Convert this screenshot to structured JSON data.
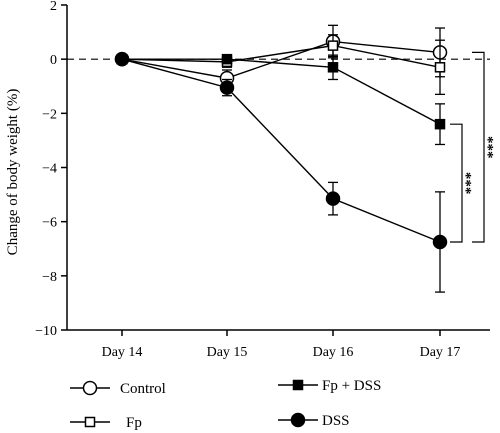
{
  "chart_data": {
    "type": "line",
    "title": "",
    "xlabel": "",
    "ylabel": "Change of body weight (%)",
    "categories": [
      "Day 14",
      "Day 15",
      "Day 16",
      "Day 17"
    ],
    "ylim": [
      -10,
      2
    ],
    "yticks": [
      2,
      0,
      -2,
      -4,
      -6,
      -8,
      -10
    ],
    "reference_line": 0,
    "grid": false,
    "legend_position": "bottom",
    "series": [
      {
        "name": "Control",
        "marker": "open-circle",
        "values": [
          0,
          -0.7,
          0.65,
          0.25
        ],
        "errors": [
          0,
          0.3,
          0.6,
          0.9
        ]
      },
      {
        "name": "Fp",
        "marker": "open-square",
        "values": [
          0,
          -0.1,
          0.5,
          -0.3
        ],
        "errors": [
          0,
          0.2,
          0.4,
          1.0
        ]
      },
      {
        "name": "Fp + DSS",
        "marker": "filled-square",
        "values": [
          0,
          0.0,
          -0.3,
          -2.4
        ],
        "errors": [
          0,
          0.1,
          0.45,
          0.75
        ]
      },
      {
        "name": "DSS",
        "marker": "filled-circle",
        "values": [
          0,
          -1.05,
          -5.15,
          -6.75
        ],
        "errors": [
          0,
          0.3,
          0.6,
          1.85
        ]
      }
    ],
    "annotations": [
      {
        "label": "***",
        "between": [
          "Fp + DSS",
          "DSS"
        ],
        "at": "Day 17"
      },
      {
        "label": "***",
        "between": [
          "Control",
          "DSS"
        ],
        "at": "Day 17"
      }
    ]
  }
}
